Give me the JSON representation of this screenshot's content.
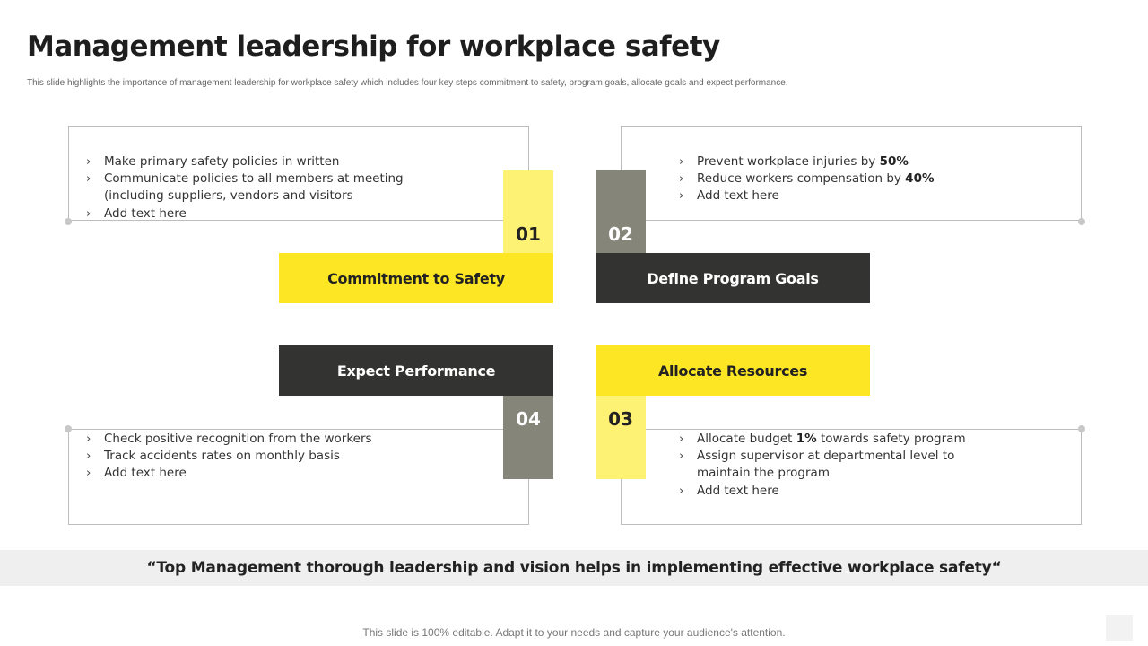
{
  "title": "Management leadership for workplace safety",
  "subtitle": "This slide highlights the importance of management leadership for workplace safety which includes four key steps commitment to safety, program goals, allocate goals and expect performance.",
  "colors": {
    "yellow": "#fde725",
    "light_yellow": "#fef275",
    "dark": "#333432",
    "gray": "#858679"
  },
  "steps": [
    {
      "number": "01",
      "label": "Commitment to Safety",
      "bullets": [
        {
          "pre": "Make primary safety policies in written",
          "strong": "",
          "post": ""
        },
        {
          "pre": "Communicate policies to all members at meeting (including suppliers, vendors and visitors",
          "strong": "",
          "post": ""
        },
        {
          "pre": "Add text here",
          "strong": "",
          "post": ""
        }
      ]
    },
    {
      "number": "02",
      "label": "Define Program Goals",
      "bullets": [
        {
          "pre": "Prevent workplace injuries by ",
          "strong": "50%",
          "post": ""
        },
        {
          "pre": "Reduce workers compensation by ",
          "strong": "40%",
          "post": ""
        },
        {
          "pre": "Add text here",
          "strong": "",
          "post": ""
        }
      ]
    },
    {
      "number": "03",
      "label": "Allocate Resources",
      "bullets": [
        {
          "pre": "Allocate budget ",
          "strong": "1%",
          "post": " towards safety program"
        },
        {
          "pre": "Assign supervisor at departmental level to maintain the program",
          "strong": "",
          "post": ""
        },
        {
          "pre": "Add text here",
          "strong": "",
          "post": ""
        }
      ]
    },
    {
      "number": "04",
      "label": "Expect Performance",
      "bullets": [
        {
          "pre": "Check positive recognition from the workers",
          "strong": "",
          "post": ""
        },
        {
          "pre": "Track accidents rates on monthly basis",
          "strong": "",
          "post": ""
        },
        {
          "pre": "Add text here",
          "strong": "",
          "post": ""
        }
      ]
    }
  ],
  "quote": "“Top Management thorough leadership and vision helps in implementing effective workplace safety“",
  "footer": "This slide is 100% editable. Adapt it to your needs and capture your audience's attention."
}
